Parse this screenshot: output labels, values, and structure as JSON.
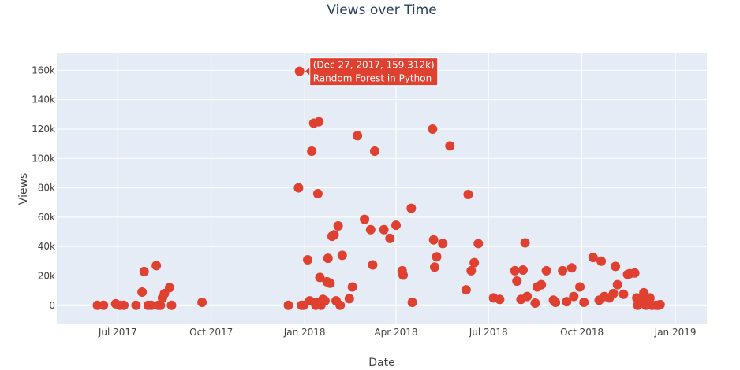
{
  "chart_data": {
    "type": "scatter",
    "title": "Views over Time",
    "xlabel": "Date",
    "ylabel": "Views",
    "x_tick_labels": [
      "Jul 2017",
      "Oct 2017",
      "Jan 2018",
      "Apr 2018",
      "Jul 2018",
      "Oct 2018",
      "Jan 2019"
    ],
    "x_tick_values": [
      0,
      92,
      184,
      274,
      365,
      457,
      549
    ],
    "xlim": [
      -60,
      580
    ],
    "y_tick_labels": [
      "0",
      "20k",
      "40k",
      "60k",
      "80k",
      "100k",
      "120k",
      "140k",
      "160k"
    ],
    "y_tick_values": [
      0,
      20000,
      40000,
      60000,
      80000,
      100000,
      120000,
      140000,
      160000
    ],
    "ylim": [
      -13000,
      172000
    ],
    "x_units": "days since Jul 1, 2017",
    "marker_color": "#e04030",
    "grid": true,
    "points": [
      [
        -20,
        0
      ],
      [
        -14,
        0
      ],
      [
        -2,
        1000
      ],
      [
        2,
        0
      ],
      [
        6,
        0
      ],
      [
        18,
        0
      ],
      [
        24,
        9000
      ],
      [
        26,
        23000
      ],
      [
        30,
        0
      ],
      [
        33,
        0
      ],
      [
        38,
        27000
      ],
      [
        40,
        0
      ],
      [
        42,
        0
      ],
      [
        44,
        5000
      ],
      [
        46,
        8000
      ],
      [
        51,
        12000
      ],
      [
        53,
        0
      ],
      [
        83,
        2000
      ],
      [
        168,
        0
      ],
      [
        178,
        80000
      ],
      [
        179,
        159312
      ],
      [
        181,
        0
      ],
      [
        183,
        0
      ],
      [
        187,
        31000
      ],
      [
        189,
        3000
      ],
      [
        191,
        105000
      ],
      [
        193,
        124000
      ],
      [
        195,
        0
      ],
      [
        196,
        2000
      ],
      [
        197,
        76000
      ],
      [
        198,
        125000
      ],
      [
        199,
        19000
      ],
      [
        200,
        0
      ],
      [
        202,
        4000
      ],
      [
        204,
        3000
      ],
      [
        206,
        16000
      ],
      [
        207,
        32000
      ],
      [
        209,
        15000
      ],
      [
        211,
        47000
      ],
      [
        213,
        48000
      ],
      [
        215,
        3000
      ],
      [
        217,
        54000
      ],
      [
        219,
        0
      ],
      [
        221,
        34000
      ],
      [
        228,
        4500
      ],
      [
        231,
        12500
      ],
      [
        236,
        115500
      ],
      [
        243,
        58500
      ],
      [
        249,
        51500
      ],
      [
        251,
        27500
      ],
      [
        253,
        105000
      ],
      [
        262,
        51500
      ],
      [
        268,
        45500
      ],
      [
        274,
        54500
      ],
      [
        280,
        23500
      ],
      [
        281,
        20500
      ],
      [
        289,
        66000
      ],
      [
        290,
        2000
      ],
      [
        310,
        120000
      ],
      [
        311,
        44500
      ],
      [
        312,
        26000
      ],
      [
        314,
        33000
      ],
      [
        320,
        42000
      ],
      [
        327,
        108500
      ],
      [
        343,
        10500
      ],
      [
        345,
        75500
      ],
      [
        348,
        23500
      ],
      [
        351,
        29000
      ],
      [
        355,
        42000
      ],
      [
        370,
        5000
      ],
      [
        376,
        4000
      ],
      [
        391,
        23500
      ],
      [
        393,
        16500
      ],
      [
        397,
        4000
      ],
      [
        399,
        24000
      ],
      [
        401,
        42500
      ],
      [
        403,
        6000
      ],
      [
        411,
        1500
      ],
      [
        413,
        12500
      ],
      [
        417,
        14000
      ],
      [
        422,
        23500
      ],
      [
        429,
        3500
      ],
      [
        431,
        2000
      ],
      [
        438,
        23500
      ],
      [
        442,
        2500
      ],
      [
        447,
        25500
      ],
      [
        449,
        6000
      ],
      [
        455,
        12500
      ],
      [
        459,
        2000
      ],
      [
        468,
        32500
      ],
      [
        474,
        3500
      ],
      [
        476,
        30000
      ],
      [
        479,
        6000
      ],
      [
        484,
        5000
      ],
      [
        488,
        8000
      ],
      [
        490,
        26500
      ],
      [
        492,
        14000
      ],
      [
        498,
        7500
      ],
      [
        502,
        21000
      ],
      [
        504,
        21500
      ],
      [
        509,
        22000
      ],
      [
        511,
        5000
      ],
      [
        512,
        0
      ],
      [
        513,
        1500
      ],
      [
        516,
        4500
      ],
      [
        518,
        8500
      ],
      [
        520,
        0
      ],
      [
        522,
        3000
      ],
      [
        524,
        5000
      ],
      [
        526,
        0
      ],
      [
        530,
        0
      ],
      [
        532,
        0
      ],
      [
        534,
        500
      ]
    ],
    "highlight": {
      "date": "Dec 27, 2017",
      "value": "159.312k",
      "label": "(Dec 27, 2017, 159.312k)",
      "name": "Random Forest in Python",
      "x": 179,
      "y": 159312
    }
  }
}
